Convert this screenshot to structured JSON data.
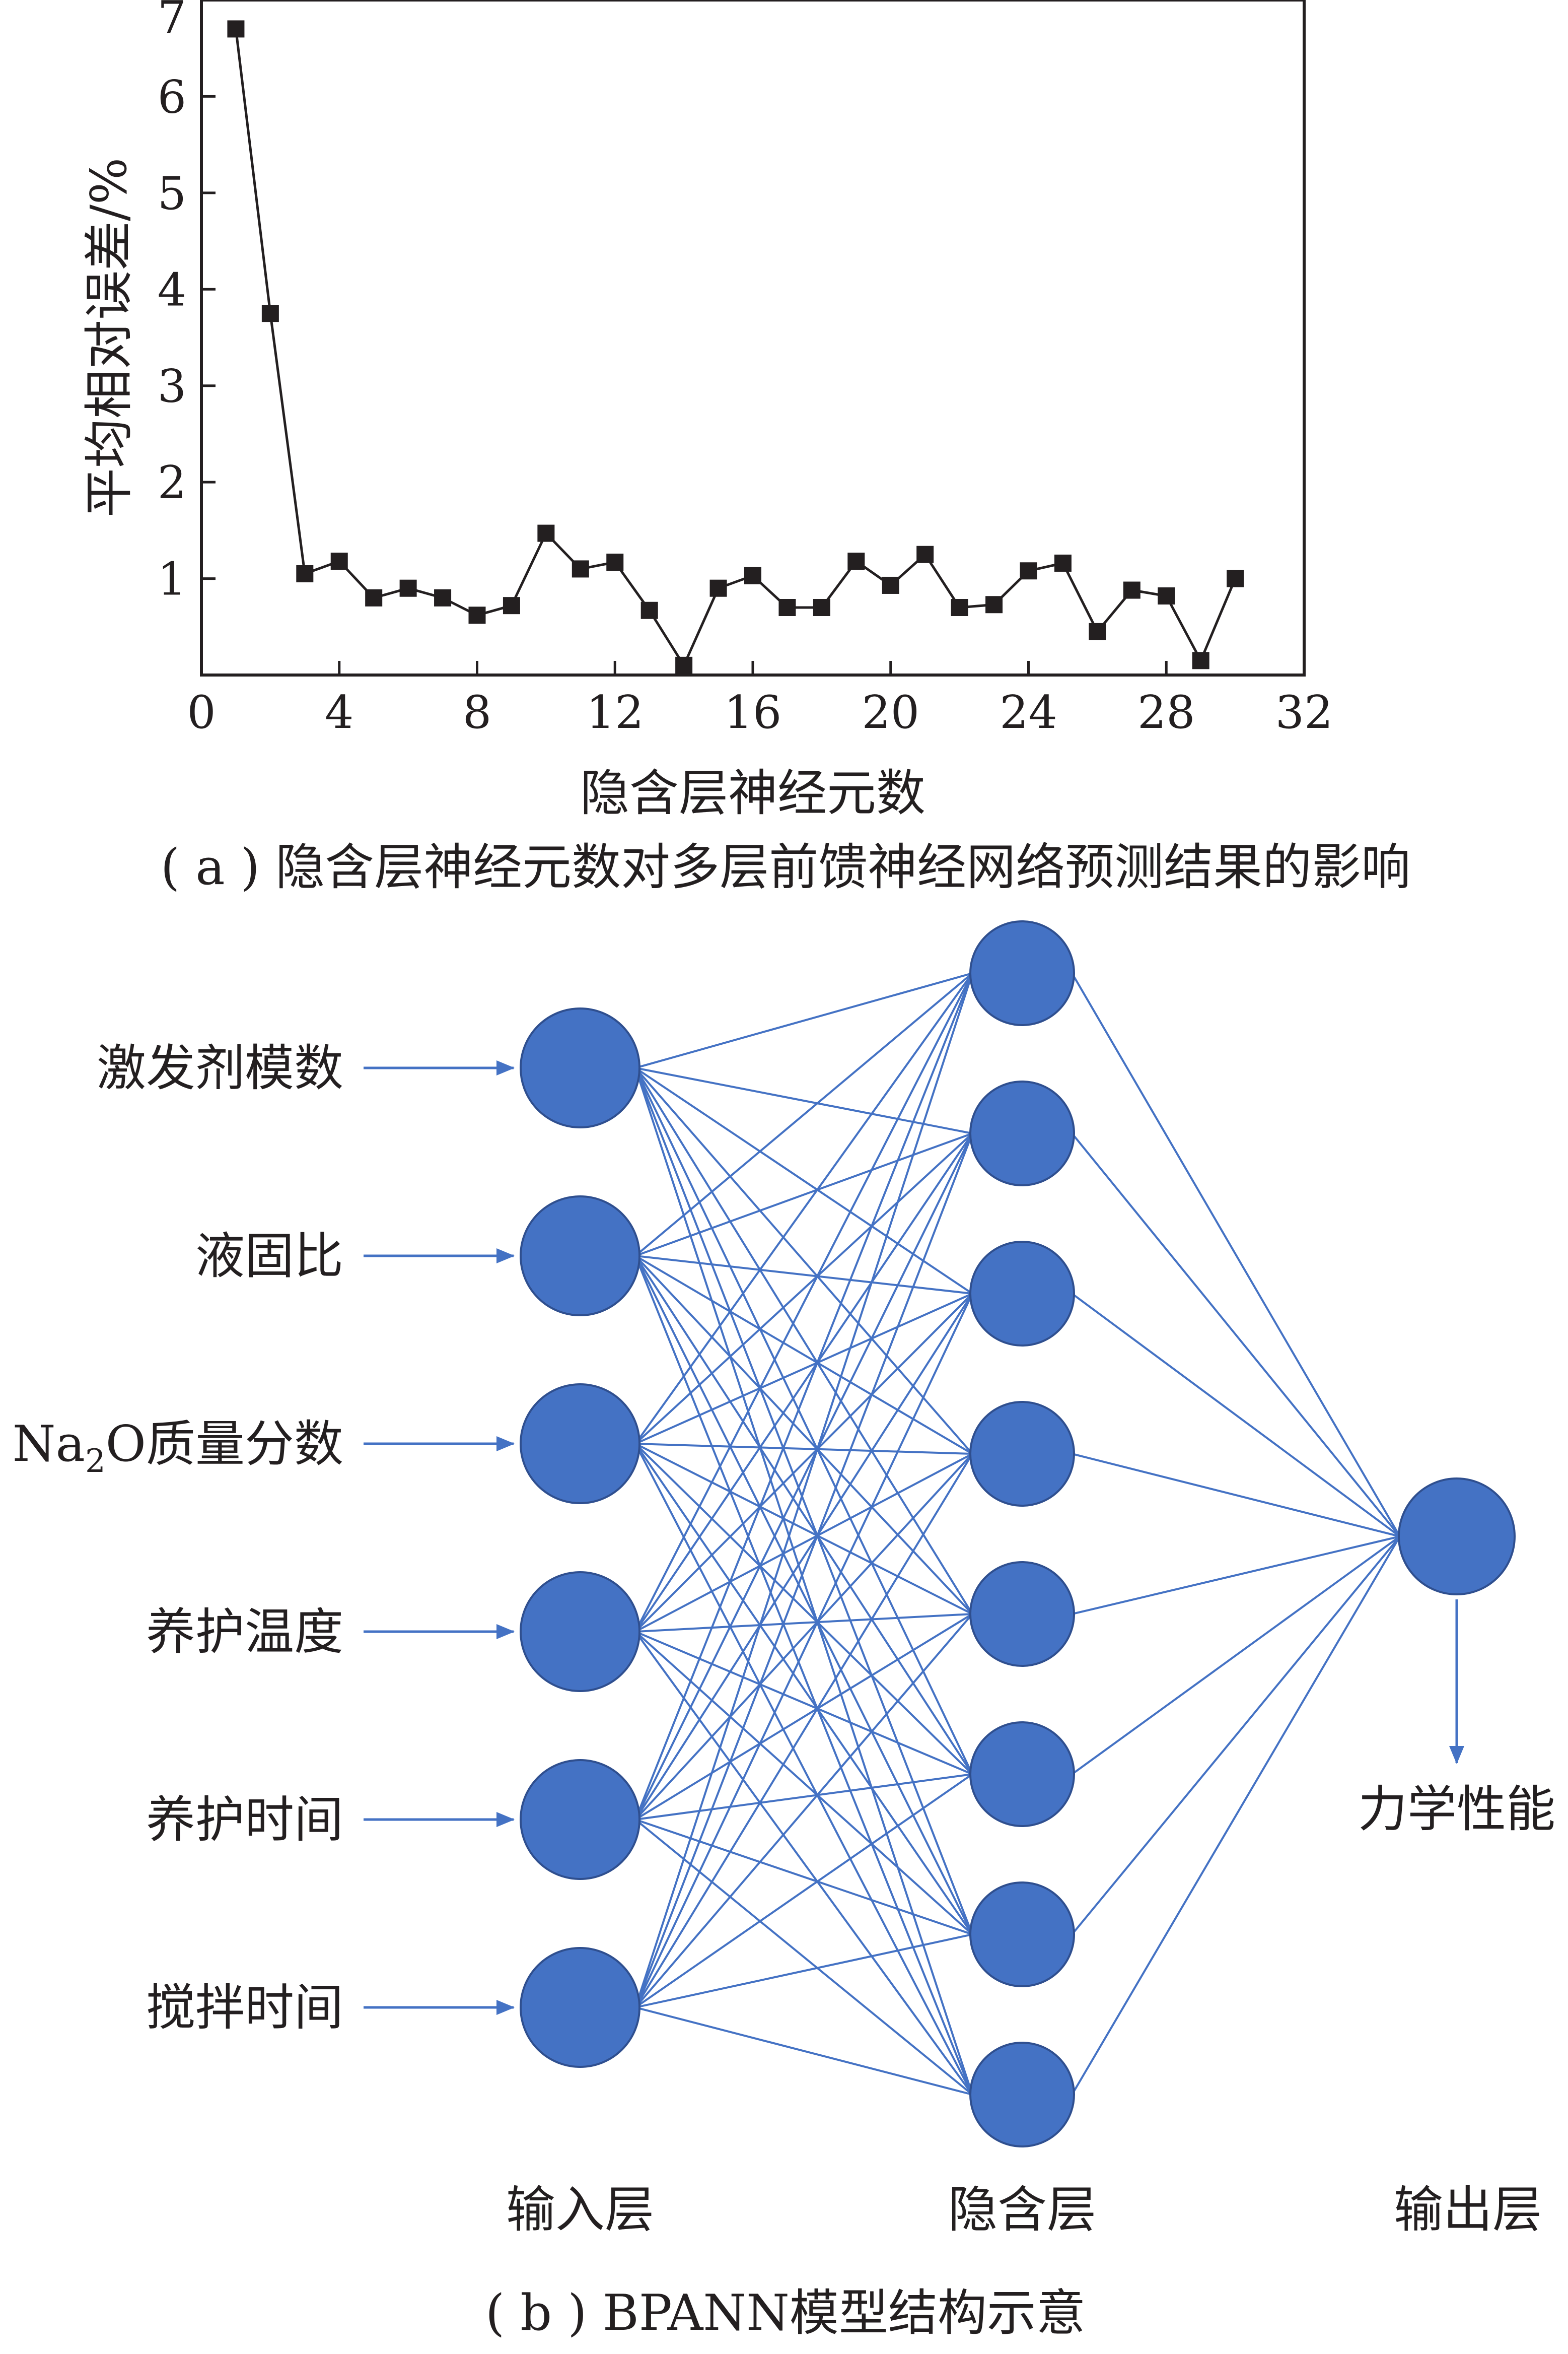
{
  "panel_a": {
    "caption": "( a ) 隐含层神经元数对多层前馈神经网络预测结果的影响"
  },
  "chart_data": {
    "type": "line",
    "title": "",
    "xlabel": "隐含层神经元数",
    "ylabel": "平均相对误差/%",
    "xlim": [
      0,
      32
    ],
    "ylim": [
      0,
      7
    ],
    "xticks": [
      "0",
      "4",
      "8",
      "12",
      "16",
      "20",
      "24",
      "28",
      "32"
    ],
    "yticks": [
      "1",
      "2",
      "3",
      "4",
      "5",
      "6",
      "7"
    ],
    "grid": false,
    "marker": "square",
    "line_color": "#231f20",
    "series": [
      {
        "x": [
          1,
          2,
          3,
          4,
          5,
          6,
          7,
          8,
          9,
          10,
          11,
          12,
          13,
          14,
          15,
          16,
          17,
          18,
          19,
          20,
          21,
          22,
          23,
          24,
          25,
          26,
          27,
          28,
          29,
          30
        ],
        "y": [
          6.7,
          3.75,
          1.05,
          1.18,
          0.8,
          0.9,
          0.8,
          0.62,
          0.72,
          1.47,
          1.1,
          1.17,
          0.67,
          0.1,
          0.9,
          1.03,
          0.7,
          0.7,
          1.18,
          0.93,
          1.25,
          0.7,
          0.73,
          1.08,
          1.16,
          0.45,
          0.88,
          0.82,
          0.15,
          1.0
        ]
      }
    ]
  },
  "panel_b": {
    "caption": "( b ) BPANN模型结构示意",
    "inputs": [
      {
        "text": "激发剂模数"
      },
      {
        "text": "液固比"
      },
      {
        "text": "Na",
        "sub": "2",
        "rest": "O质量分数"
      },
      {
        "text": "养护温度"
      },
      {
        "text": "养护时间"
      },
      {
        "text": "搅拌时间"
      }
    ],
    "output_label": "力学性能",
    "layer_labels": [
      "输入层",
      "隐含层",
      "输出层"
    ],
    "input_count": 6,
    "hidden_count": 8,
    "output_count": 1,
    "node_color": "#4472c4",
    "edge_color": "#4472c4"
  }
}
